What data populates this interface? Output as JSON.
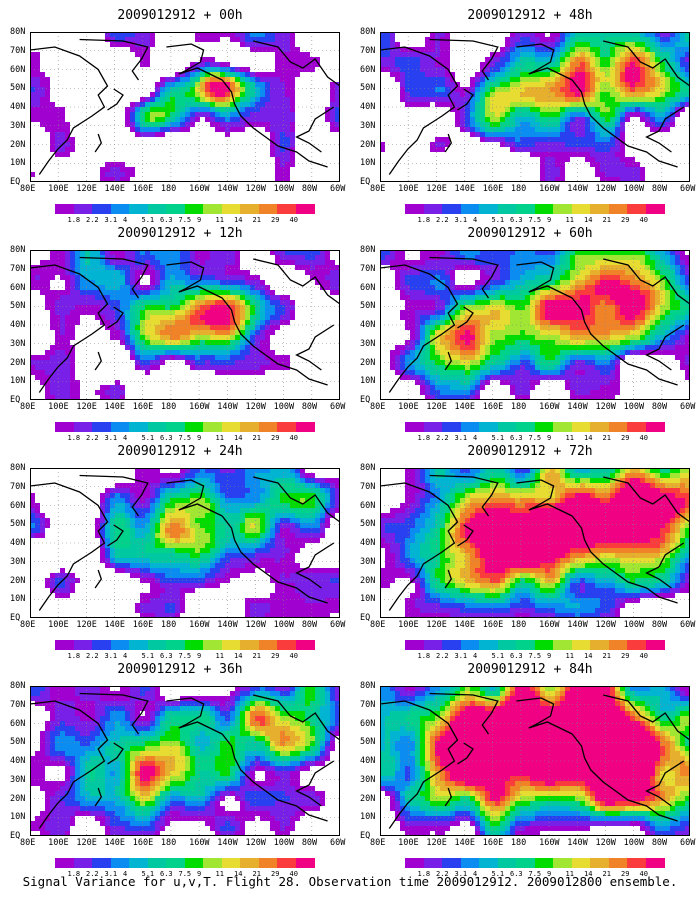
{
  "panels": [
    {
      "title": "2009012912 + 00h"
    },
    {
      "title": "2009012912 + 48h"
    },
    {
      "title": "2009012912 + 12h"
    },
    {
      "title": "2009012912 + 60h"
    },
    {
      "title": "2009012912 + 24h"
    },
    {
      "title": "2009012912 + 72h"
    },
    {
      "title": "2009012912 + 36h"
    },
    {
      "title": "2009012912 + 84h"
    }
  ],
  "lat_labels": [
    "80N",
    "70N",
    "60N",
    "50N",
    "40N",
    "30N",
    "20N",
    "10N",
    "EQ"
  ],
  "lon_labels": [
    "80E",
    "100E",
    "120E",
    "140E",
    "160E",
    "180",
    "160W",
    "140W",
    "120W",
    "100W",
    "80W",
    "60W"
  ],
  "colorbar": {
    "labels": [
      "1.8",
      "2.2",
      "3.1",
      "4",
      "5.1",
      "6.3",
      "7.5",
      "9",
      "11",
      "14",
      "21",
      "29",
      "40"
    ],
    "colors": [
      "#a000d0",
      "#7820e8",
      "#2840f0",
      "#0a8cf0",
      "#00b4d2",
      "#00c8a0",
      "#00d28c",
      "#00dc00",
      "#a0e632",
      "#e6dc32",
      "#e6af2d",
      "#f08228",
      "#fa3c3c",
      "#f00082"
    ]
  },
  "footer": "Signal Variance for u,v,T. Flight 28. Observation time 2009012912. 2009012800 ensemble."
}
